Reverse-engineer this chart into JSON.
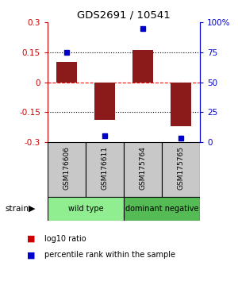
{
  "title": "GDS2691 / 10541",
  "samples": [
    "GSM176606",
    "GSM176611",
    "GSM175764",
    "GSM175765"
  ],
  "bar_values": [
    0.1,
    -0.19,
    0.16,
    -0.22
  ],
  "blue_dots_pct": [
    75,
    5,
    95,
    3
  ],
  "bar_color": "#8B1A1A",
  "dot_color": "#0000CD",
  "ylim_left": [
    -0.3,
    0.3
  ],
  "ylim_right": [
    0,
    100
  ],
  "yticks_left": [
    -0.3,
    -0.15,
    0,
    0.15,
    0.3
  ],
  "yticks_right": [
    0,
    25,
    50,
    75,
    100
  ],
  "ytick_labels_left": [
    "-0.3",
    "-0.15",
    "0",
    "0.15",
    "0.3"
  ],
  "ytick_labels_right": [
    "0",
    "25",
    "50",
    "75",
    "100%"
  ],
  "hline_positions": [
    -0.15,
    0,
    0.15
  ],
  "hline_styles": [
    "dotted",
    "dashed",
    "dotted"
  ],
  "hline_colors": [
    "black",
    "red",
    "black"
  ],
  "groups": [
    {
      "label": "wild type",
      "indices": [
        0,
        1
      ],
      "color": "#90EE90"
    },
    {
      "label": "dominant negative",
      "indices": [
        2,
        3
      ],
      "color": "#55BB55"
    }
  ],
  "strain_label": "strain",
  "legend_items": [
    {
      "color": "#CC0000",
      "label": "log10 ratio"
    },
    {
      "color": "#0000CC",
      "label": "percentile rank within the sample"
    }
  ],
  "bar_width": 0.55,
  "left_yaxis_color": "#CC0000",
  "right_yaxis_color": "#0000CC",
  "bg_color": "#FFFFFF",
  "label_box_color": "#C8C8C8",
  "label_box_border": "#000000"
}
